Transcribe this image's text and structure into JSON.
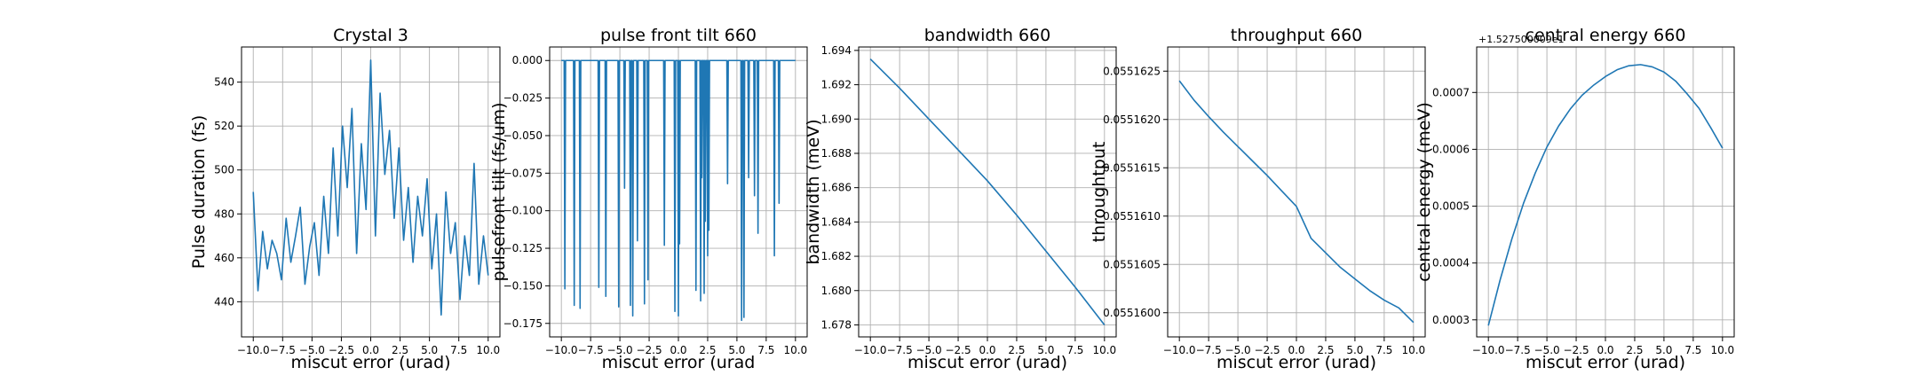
{
  "chart_data": [
    {
      "type": "line",
      "title": "Crystal 3",
      "xlabel": "miscut error (urad)",
      "ylabel": "Pulse duration (fs)",
      "xlim": [
        -11.0,
        11.0
      ],
      "ylim": [
        424,
        556
      ],
      "xticks": [
        -10,
        -7.5,
        -5,
        -2.5,
        0,
        2.5,
        5,
        7.5,
        10
      ],
      "xtick_labels": [
        "−10.0",
        "−7.5",
        "−5.0",
        "−2.5",
        "0.0",
        "2.5",
        "5.0",
        "7.5",
        "10.0"
      ],
      "yticks": [
        440,
        460,
        480,
        500,
        520,
        540
      ],
      "ytick_labels": [
        "440",
        "460",
        "480",
        "500",
        "520",
        "540"
      ],
      "grid": true,
      "series": [
        {
          "color": "#1f77b4",
          "x": [
            -10.0,
            -9.6,
            -9.2,
            -8.8,
            -8.4,
            -8.0,
            -7.6,
            -7.2,
            -6.8,
            -6.4,
            -6.0,
            -5.6,
            -5.2,
            -4.8,
            -4.4,
            -4.0,
            -3.6,
            -3.2,
            -2.8,
            -2.4,
            -2.0,
            -1.6,
            -1.2,
            -0.8,
            -0.4,
            0.0,
            0.4,
            0.8,
            1.2,
            1.6,
            2.0,
            2.4,
            2.8,
            3.2,
            3.6,
            4.0,
            4.4,
            4.8,
            5.2,
            5.6,
            6.0,
            6.4,
            6.8,
            7.2,
            7.6,
            8.0,
            8.4,
            8.8,
            9.2,
            9.6,
            10.0
          ],
          "y": [
            490,
            445,
            472,
            455,
            468,
            462,
            450,
            478,
            458,
            470,
            483,
            448,
            465,
            476,
            452,
            488,
            462,
            510,
            470,
            520,
            492,
            528,
            462,
            512,
            482,
            550,
            470,
            535,
            498,
            518,
            478,
            510,
            468,
            492,
            458,
            488,
            470,
            496,
            455,
            480,
            434,
            490,
            462,
            476,
            441,
            470,
            452,
            503,
            448,
            470,
            452
          ]
        }
      ]
    },
    {
      "type": "line",
      "title": "pulse front tilt 660",
      "xlabel": "miscut error (urad",
      "ylabel": "pulsefront tilt (fs/um)",
      "xlim": [
        -11.0,
        11.0
      ],
      "ylim": [
        -0.184,
        0.009
      ],
      "xticks": [
        -10,
        -7.5,
        -5,
        -2.5,
        0,
        2.5,
        5,
        7.5,
        10
      ],
      "xtick_labels": [
        "−10.0",
        "−7.5",
        "−5.0",
        "−2.5",
        "0.0",
        "2.5",
        "5.0",
        "7.5",
        "10.0"
      ],
      "yticks": [
        0.0,
        -0.025,
        -0.05,
        -0.075,
        -0.1,
        -0.125,
        -0.15,
        -0.175
      ],
      "ytick_labels": [
        "0.000",
        "−0.025",
        "−0.050",
        "−0.075",
        "−0.100",
        "−0.125",
        "−0.150",
        "−0.175"
      ],
      "grid": true,
      "series": [
        {
          "color": "#1f77b4",
          "spikes_x": [
            -9.7,
            -8.9,
            -8.4,
            -6.8,
            -6.2,
            -5.1,
            -4.6,
            -4.1,
            -3.9,
            -3.5,
            -2.9,
            -2.6,
            -1.2,
            -0.3,
            0.0,
            0.1,
            1.5,
            1.9,
            2.0,
            2.2,
            2.3,
            2.5,
            2.6,
            4.2,
            5.4,
            5.6,
            6.0,
            6.5,
            6.8,
            8.2,
            8.6
          ],
          "spikes_y": [
            -0.152,
            -0.163,
            -0.165,
            -0.151,
            -0.157,
            -0.164,
            -0.085,
            -0.163,
            -0.17,
            -0.12,
            -0.162,
            -0.146,
            -0.123,
            -0.167,
            -0.17,
            -0.122,
            -0.153,
            -0.16,
            -0.078,
            -0.155,
            -0.107,
            -0.13,
            -0.113,
            -0.082,
            -0.173,
            -0.171,
            -0.078,
            -0.09,
            -0.115,
            -0.13,
            -0.095
          ],
          "baseline": 0.0
        }
      ]
    },
    {
      "type": "line",
      "title": "bandwidth 660",
      "xlabel": "miscut error (urad)",
      "ylabel": "bandwidth (meV)",
      "xlim": [
        -11.0,
        11.0
      ],
      "ylim": [
        1.6773,
        1.6942
      ],
      "xticks": [
        -10,
        -7.5,
        -5,
        -2.5,
        0,
        2.5,
        5,
        7.5,
        10
      ],
      "xtick_labels": [
        "−10.0",
        "−7.5",
        "−5.0",
        "−2.5",
        "0.0",
        "2.5",
        "5.0",
        "7.5",
        "10.0"
      ],
      "yticks": [
        1.678,
        1.68,
        1.682,
        1.684,
        1.686,
        1.688,
        1.69,
        1.692,
        1.694
      ],
      "ytick_labels": [
        "1.678",
        "1.680",
        "1.682",
        "1.684",
        "1.686",
        "1.688",
        "1.690",
        "1.692",
        "1.694"
      ],
      "grid": true,
      "series": [
        {
          "color": "#1f77b4",
          "x": [
            -10,
            -7.5,
            -5,
            -2.5,
            0,
            2.5,
            5,
            7.5,
            10
          ],
          "y": [
            1.6935,
            1.6918,
            1.69,
            1.6882,
            1.6864,
            1.6844,
            1.6823,
            1.6802,
            1.678
          ]
        }
      ]
    },
    {
      "type": "line",
      "title": "throughput 660",
      "xlabel": "miscut error (urad)",
      "ylabel": "throughtput",
      "xlim": [
        -11.0,
        11.0
      ],
      "ylim": [
        0.05515975,
        0.05516275
      ],
      "xticks": [
        -10,
        -7.5,
        -5,
        -2.5,
        0,
        2.5,
        5,
        7.5,
        10
      ],
      "xtick_labels": [
        "−10.0",
        "−7.5",
        "−5.0",
        "−2.5",
        "0.0",
        "2.5",
        "5.0",
        "7.5",
        "10.0"
      ],
      "yticks": [
        0.05516,
        0.0551605,
        0.055161,
        0.0551615,
        0.055162,
        0.0551625
      ],
      "ytick_labels": [
        "0.0551600",
        "0.0551605",
        "0.0551610",
        "0.0551615",
        "0.0551620",
        "0.0551625"
      ],
      "grid": true,
      "series": [
        {
          "color": "#1f77b4",
          "x": [
            -10,
            -8.75,
            -7.5,
            -6.25,
            -5,
            -3.75,
            -2.5,
            -1.25,
            0,
            1.25,
            2.5,
            3.75,
            5,
            6.25,
            7.5,
            8.75,
            10
          ],
          "y": [
            0.0551624,
            0.0551622,
            0.05516203,
            0.05516187,
            0.05516172,
            0.05516157,
            0.05516142,
            0.05516126,
            0.0551611,
            0.05516077,
            0.05516062,
            0.05516047,
            0.05516035,
            0.05516023,
            0.05516013,
            0.05516005,
            0.0551599
          ]
        }
      ]
    },
    {
      "type": "line",
      "title": "central energy 660",
      "xlabel": "miscut error (urad)",
      "ylabel": "central energy (meV)",
      "offset_text": "+1.527500009e1",
      "xlim": [
        -11.0,
        11.0
      ],
      "ylim": [
        0.00027,
        0.00078
      ],
      "xticks": [
        -10,
        -7.5,
        -5,
        -2.5,
        0,
        2.5,
        5,
        7.5,
        10
      ],
      "xtick_labels": [
        "−10.0",
        "−7.5",
        "−5.0",
        "−2.5",
        "0.0",
        "2.5",
        "5.0",
        "7.5",
        "10.0"
      ],
      "yticks": [
        0.0003,
        0.0004,
        0.0005,
        0.0006,
        0.0007
      ],
      "ytick_labels": [
        "0.0003",
        "0.0004",
        "0.0005",
        "0.0006",
        "0.0007"
      ],
      "grid": true,
      "series": [
        {
          "color": "#1f77b4",
          "x": [
            -10,
            -9,
            -8,
            -7,
            -6,
            -5,
            -4,
            -3,
            -2,
            -1,
            0,
            1,
            2,
            3,
            4,
            5,
            6,
            7,
            8,
            9,
            10
          ],
          "y": [
            0.00029,
            0.00037,
            0.000442,
            0.000505,
            0.000558,
            0.000604,
            0.000641,
            0.000671,
            0.000695,
            0.000713,
            0.000728,
            0.00074,
            0.000747,
            0.000749,
            0.000745,
            0.000736,
            0.00072,
            0.000697,
            0.000672,
            0.000638,
            0.000602
          ]
        }
      ]
    }
  ]
}
